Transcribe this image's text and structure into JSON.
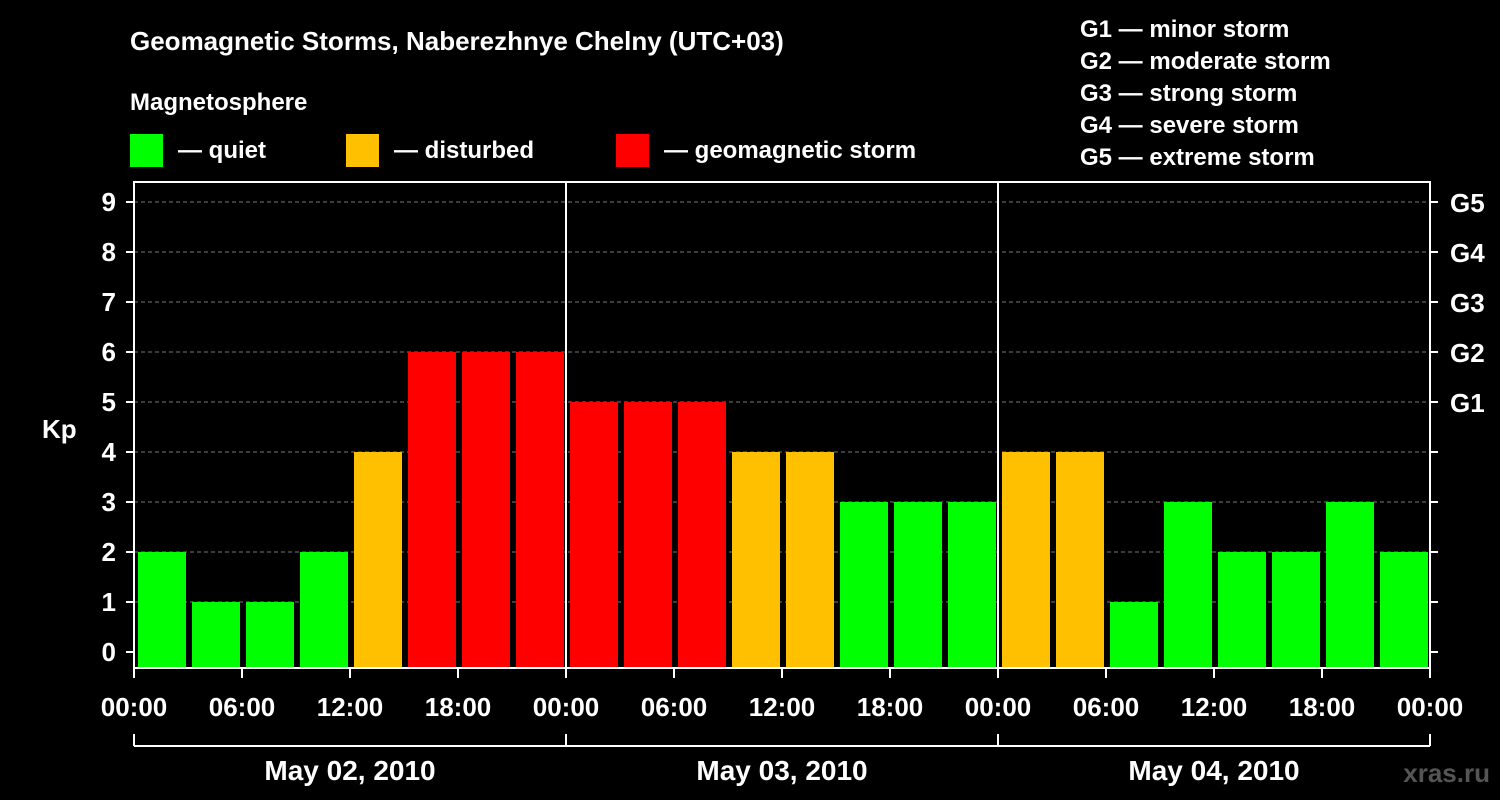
{
  "title": "Geomagnetic Storms, Naberezhnye Chelny (UTC+03)",
  "legend": {
    "heading": "Magnetosphere",
    "items": [
      {
        "label": "— quiet",
        "color": "#00FF00"
      },
      {
        "label": "— disturbed",
        "color": "#FFC000"
      },
      {
        "label": "— geomagnetic storm",
        "color": "#FF0000"
      }
    ]
  },
  "storm_scale": [
    "G1 — minor storm",
    "G2 — moderate storm",
    "G3 — strong storm",
    "G4 — severe storm",
    "G5 — extreme storm"
  ],
  "watermark": "xras.ru",
  "chart_data": {
    "type": "bar",
    "title": "Geomagnetic Storms, Naberezhnye Chelny (UTC+03)",
    "ylabel": "Kp",
    "ylim": [
      0,
      9
    ],
    "yticks": [
      "0",
      "1",
      "2",
      "3",
      "4",
      "5",
      "6",
      "7",
      "8",
      "9"
    ],
    "right_ticks": [
      {
        "kp": 5,
        "label": "G1"
      },
      {
        "kp": 6,
        "label": "G2"
      },
      {
        "kp": 7,
        "label": "G3"
      },
      {
        "kp": 8,
        "label": "G4"
      },
      {
        "kp": 9,
        "label": "G5"
      }
    ],
    "xtick_labels": [
      "00:00",
      "06:00",
      "12:00",
      "18:00",
      "00:00",
      "06:00",
      "12:00",
      "18:00",
      "00:00",
      "06:00",
      "12:00",
      "18:00",
      "00:00"
    ],
    "days": [
      "May 02, 2010",
      "May 03, 2010",
      "May 04, 2010"
    ],
    "bars_per_day": 8,
    "values": [
      2,
      1,
      1,
      2,
      4,
      6,
      6,
      6,
      5,
      5,
      5,
      4,
      4,
      3,
      3,
      3,
      4,
      4,
      1,
      3,
      2,
      2,
      3,
      2
    ],
    "color_thresholds": {
      "quiet_max": 3,
      "disturbed_max": 4
    },
    "grid": true
  }
}
